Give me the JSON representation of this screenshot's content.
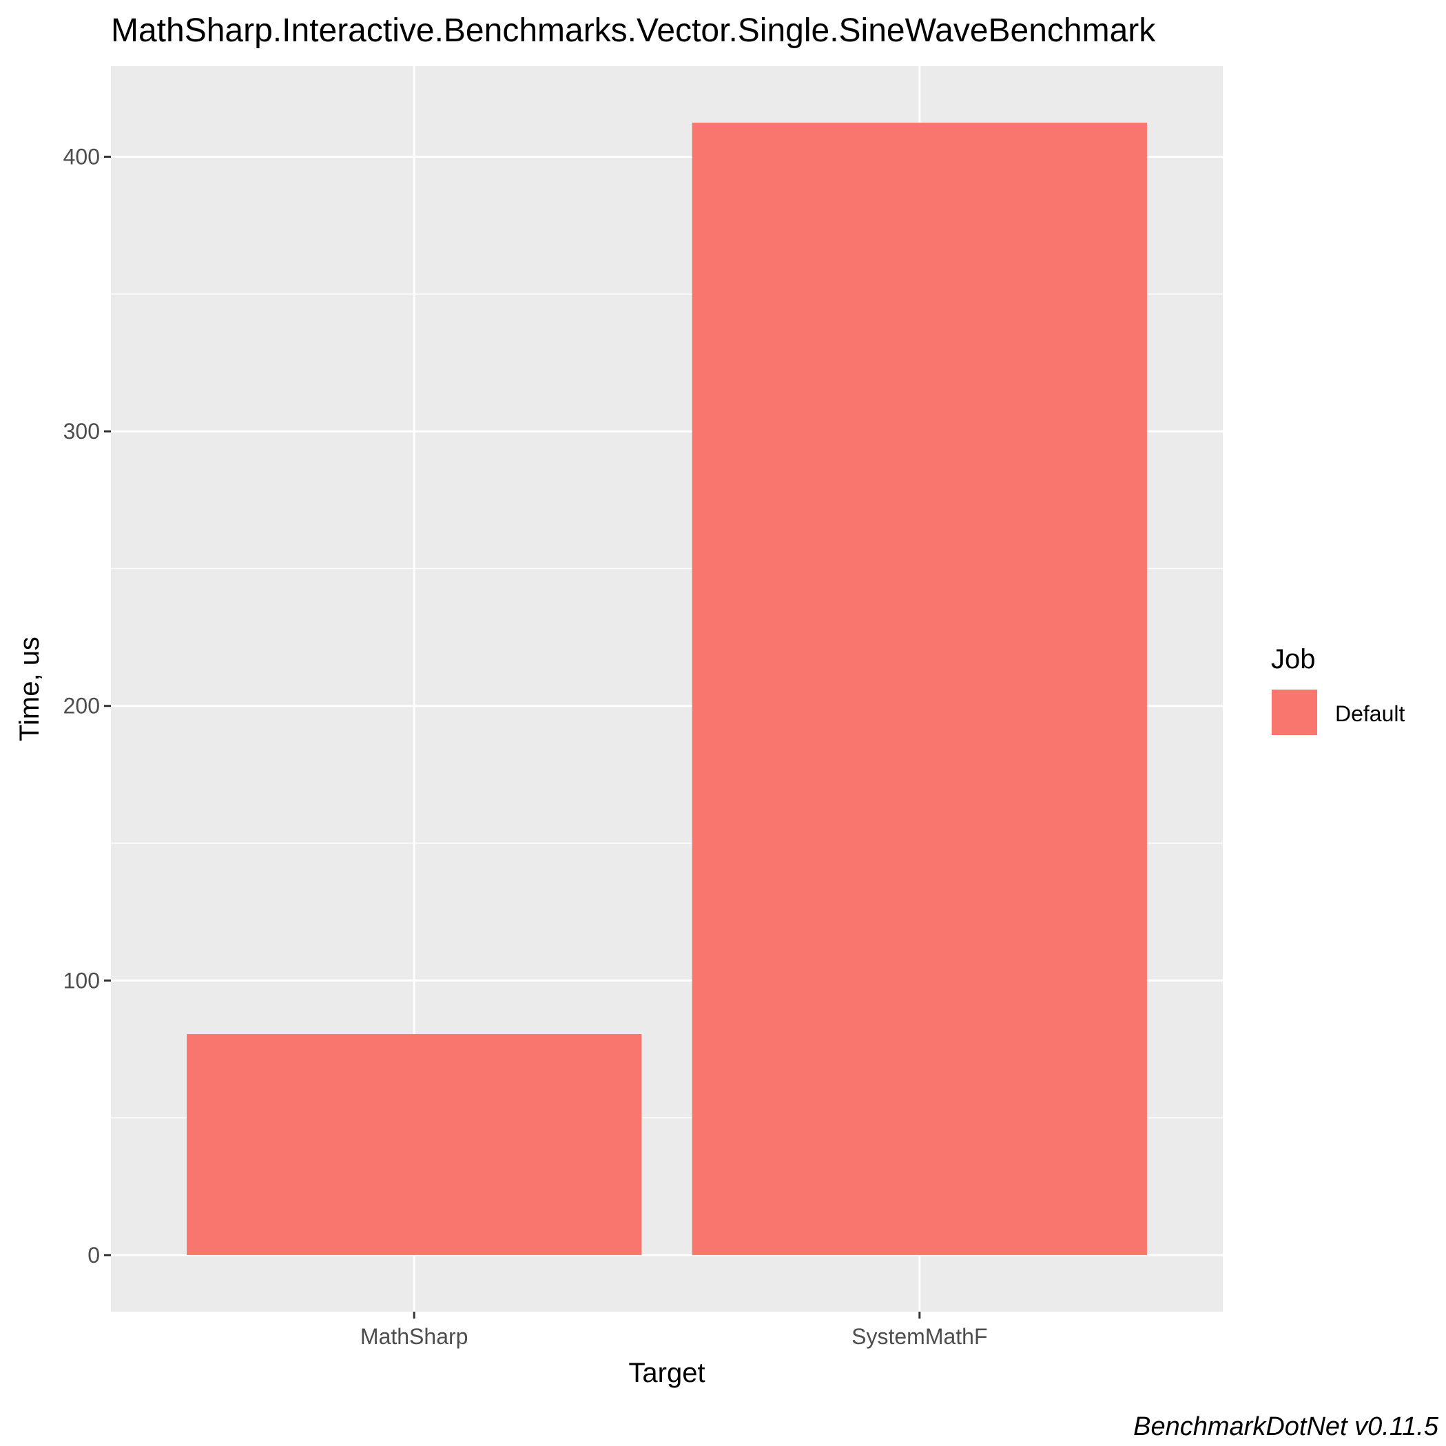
{
  "chart_data": {
    "type": "bar",
    "title": "MathSharp.Interactive.Benchmarks.Vector.Single.SineWaveBenchmark",
    "xlabel": "Target",
    "ylabel": "Time, us",
    "categories": [
      "MathSharp",
      "SystemMathF"
    ],
    "series": [
      {
        "name": "Default",
        "values": [
          80.5,
          412.4
        ]
      }
    ],
    "yticks": [
      "0",
      "100",
      "200",
      "300",
      "400"
    ],
    "ylim": [
      -20.6,
      433
    ],
    "grid": true,
    "legend": {
      "title": "Job",
      "placement": "right",
      "entries": [
        "Default"
      ]
    },
    "colors": {
      "bar": "#F8766D",
      "panel": "#EBEBEB",
      "grid": "#FFFFFF"
    },
    "caption": "BenchmarkDotNet v0.11.5"
  }
}
